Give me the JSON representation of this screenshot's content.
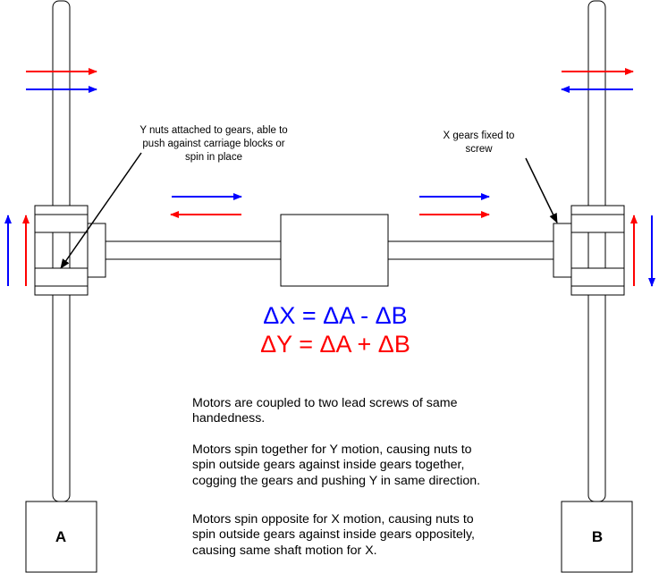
{
  "motors": {
    "left_label": "A",
    "right_label": "B"
  },
  "annotations": {
    "y_nuts": [
      "Y nuts attached to gears, able to",
      "push against carriage blocks or",
      "spin in place"
    ],
    "x_gears": [
      "X gears fixed to",
      "screw"
    ]
  },
  "equations": {
    "dx": "ΔX = ΔA - ΔB",
    "dy": "ΔY = ΔA + ΔB"
  },
  "description": {
    "p1": "Motors are coupled to two lead screws of same handedness.",
    "p2": "Motors spin together for Y motion, causing nuts to spin outside gears against inside gears together, cogging the gears and pushing Y in same direction.",
    "p3": "Motors spin opposite for X motion, causing nuts to spin outside gears against inside gears oppositely, causing same shaft motion for X."
  },
  "colors": {
    "x_motion": "#0000ff",
    "y_motion": "#ff0000",
    "outline": "#000000"
  }
}
